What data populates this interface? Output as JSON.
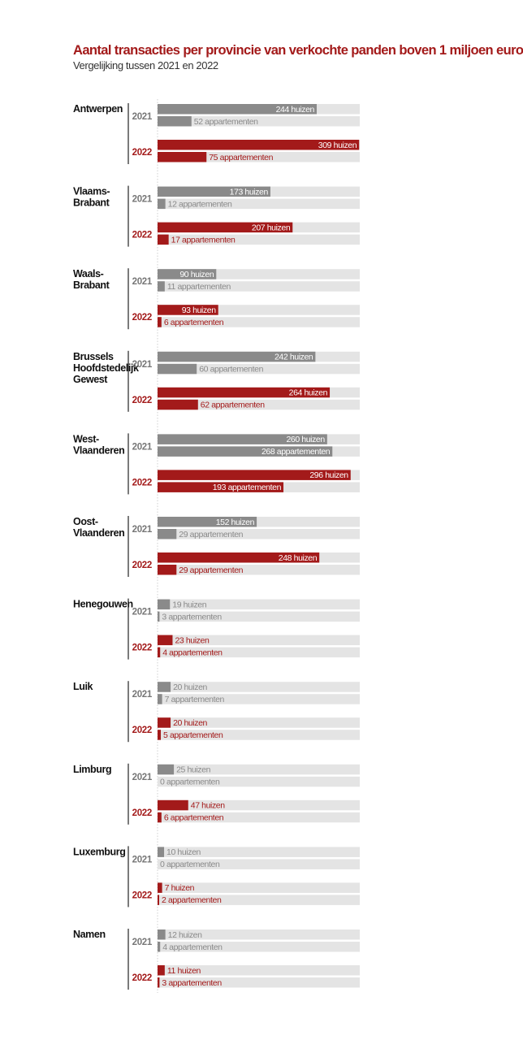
{
  "title": "Aantal transacties per provincie van verkochte panden boven 1 miljoen euro",
  "subtitle": "Vergelijking tussen 2021 en 2022",
  "colors": {
    "y2021": "#8a8a8a",
    "y2022": "#a31a1a",
    "track": "#e4e4e4",
    "label_2021": "#777777",
    "label_2022": "#a31a1a"
  },
  "chart_data": {
    "type": "bar",
    "orientation": "horizontal",
    "xlim": [
      0,
      310
    ],
    "years": [
      "2021",
      "2022"
    ],
    "series": [
      {
        "name": "huizen",
        "unit_label": "huizen"
      },
      {
        "name": "appartementen",
        "unit_label": "appartementen"
      }
    ],
    "provinces": [
      {
        "name": [
          "Antwerpen"
        ],
        "2021": {
          "huizen": 244,
          "appartementen": 52
        },
        "2022": {
          "huizen": 309,
          "appartementen": 75
        }
      },
      {
        "name": [
          "Vlaams-",
          "Brabant"
        ],
        "2021": {
          "huizen": 173,
          "appartementen": 12
        },
        "2022": {
          "huizen": 207,
          "appartementen": 17
        }
      },
      {
        "name": [
          "Waals-",
          "Brabant"
        ],
        "2021": {
          "huizen": 90,
          "appartementen": 11
        },
        "2022": {
          "huizen": 93,
          "appartementen": 6
        }
      },
      {
        "name": [
          "Brussels",
          "Hoofdstedelijk",
          "Gewest"
        ],
        "2021": {
          "huizen": 242,
          "appartementen": 60
        },
        "2022": {
          "huizen": 264,
          "appartementen": 62
        }
      },
      {
        "name": [
          "West-",
          "Vlaanderen"
        ],
        "2021": {
          "huizen": 260,
          "appartementen": 268
        },
        "2022": {
          "huizen": 296,
          "appartementen": 193
        }
      },
      {
        "name": [
          "Oost-",
          "Vlaanderen"
        ],
        "2021": {
          "huizen": 152,
          "appartementen": 29
        },
        "2022": {
          "huizen": 248,
          "appartementen": 29
        }
      },
      {
        "name": [
          "Henegouwen"
        ],
        "2021": {
          "huizen": 19,
          "appartementen": 3
        },
        "2022": {
          "huizen": 23,
          "appartementen": 4
        }
      },
      {
        "name": [
          "Luik"
        ],
        "2021": {
          "huizen": 20,
          "appartementen": 7
        },
        "2022": {
          "huizen": 20,
          "appartementen": 5
        }
      },
      {
        "name": [
          "Limburg"
        ],
        "2021": {
          "huizen": 25,
          "appartementen": 0
        },
        "2022": {
          "huizen": 47,
          "appartementen": 6
        }
      },
      {
        "name": [
          "Luxemburg"
        ],
        "2021": {
          "huizen": 10,
          "appartementen": 0
        },
        "2022": {
          "huizen": 7,
          "appartementen": 2
        }
      },
      {
        "name": [
          "Namen"
        ],
        "2021": {
          "huizen": 12,
          "appartementen": 4
        },
        "2022": {
          "huizen": 11,
          "appartementen": 3
        }
      }
    ]
  }
}
